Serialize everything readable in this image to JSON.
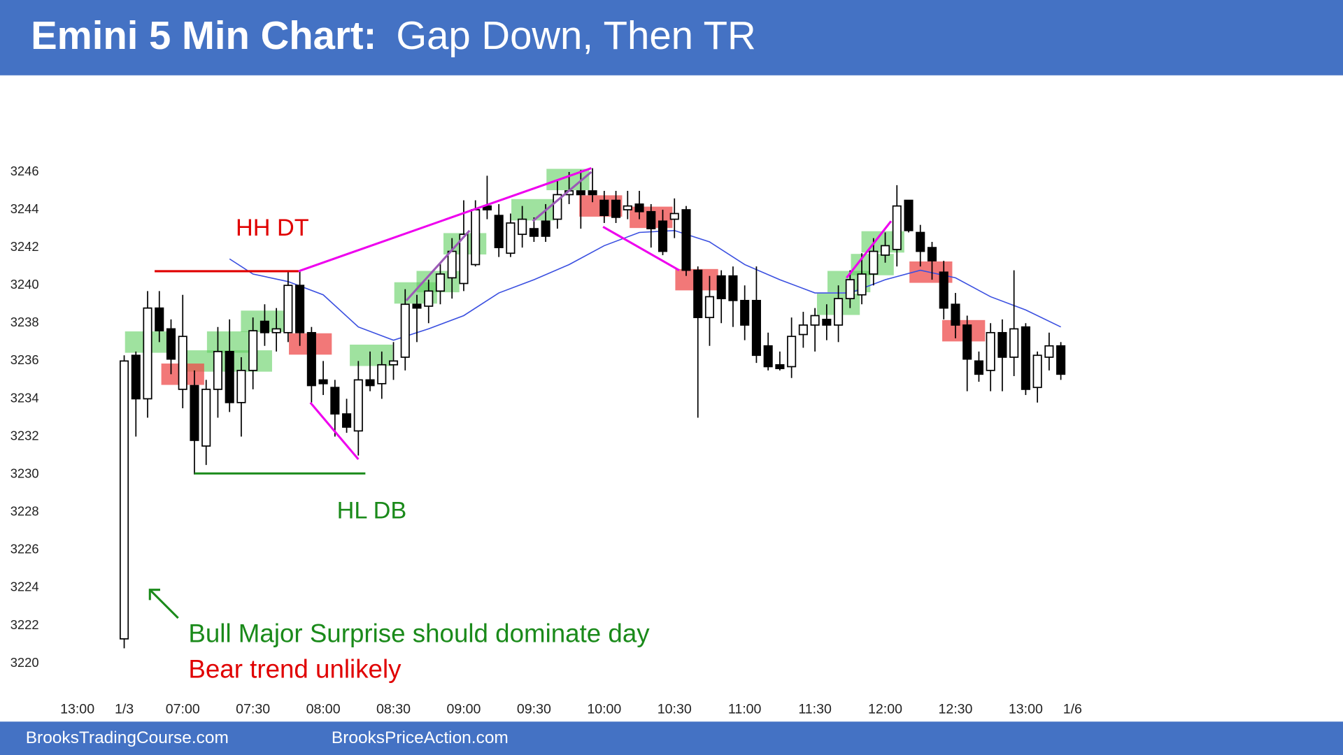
{
  "chart_data": {
    "type": "candlestick",
    "title": "Emini 5 Min Chart:",
    "subtitle": "Gap Down, Then TR",
    "x": [
      0,
      1,
      2,
      3,
      4,
      5,
      6,
      7,
      8,
      9,
      10,
      11,
      12,
      13,
      14,
      15,
      16,
      17,
      18,
      19,
      20,
      21,
      22,
      23,
      24,
      25,
      26,
      27,
      28,
      29,
      30,
      31,
      32,
      33,
      34,
      35,
      36,
      37,
      38,
      39,
      40,
      41,
      42,
      43,
      44,
      45,
      46,
      47,
      48,
      49,
      50,
      51,
      52,
      53,
      54,
      55,
      56,
      57,
      58,
      59,
      60,
      61,
      62,
      63,
      64,
      65,
      66,
      67,
      68,
      69,
      70,
      71,
      72,
      73,
      74,
      75,
      76,
      77,
      78,
      79,
      80
    ],
    "open": [
      3221.3,
      3236.3,
      3234,
      3238.8,
      3237.7,
      3234.5,
      3234.7,
      3231.5,
      3234.5,
      3236.5,
      3233.8,
      3235.5,
      3238.1,
      3237.5,
      3237.5,
      3240,
      3237.5,
      3235,
      3234.6,
      3233.2,
      3232.3,
      3235,
      3234.8,
      3235.8,
      3236.2,
      3239,
      3238.9,
      3239.7,
      3240.4,
      3240.1,
      3241.1,
      3244.2,
      3243.7,
      3241.7,
      3242.7,
      3243,
      3243.4,
      3243.5,
      3244.8,
      3245,
      3245,
      3244.5,
      3244.5,
      3244,
      3244.3,
      3243.9,
      3243.4,
      3243.5,
      3244,
      3240.8,
      3238.3,
      3240.5,
      3240.5,
      3239.2,
      3239.2,
      3236.8,
      3235.8,
      3235.7,
      3237.4,
      3237.9,
      3238.2,
      3237.9,
      3239.3,
      3239.5,
      3240.6,
      3241.6,
      3241.9,
      3244.5,
      3242.8,
      3242,
      3240.7,
      3239,
      3237.9,
      3236,
      3235.5,
      3237.5,
      3236.2,
      3237.8,
      3234.6,
      3236.2,
      3236.8
    ],
    "high": [
      3236.3,
      3236.5,
      3239.7,
      3239.7,
      3238.2,
      3239.5,
      3235.5,
      3235,
      3237.8,
      3238.2,
      3236.2,
      3238.3,
      3239,
      3238.8,
      3240.8,
      3240.8,
      3237.8,
      3236,
      3235,
      3234,
      3236,
      3236.5,
      3236.5,
      3237,
      3239.8,
      3239.5,
      3240.3,
      3241.2,
      3242.5,
      3244.5,
      3244.5,
      3245.8,
      3244.3,
      3243.8,
      3244.2,
      3243.6,
      3244.3,
      3245.6,
      3246,
      3246.1,
      3246.2,
      3245,
      3245,
      3245,
      3245,
      3244.3,
      3244,
      3244.6,
      3244.2,
      3241,
      3240.5,
      3240.8,
      3241,
      3240,
      3241,
      3237.5,
      3236.5,
      3238.3,
      3238.6,
      3238.8,
      3239,
      3240,
      3240.8,
      3241.7,
      3242.5,
      3242.8,
      3245.3,
      3244.5,
      3243.2,
      3242.3,
      3241.3,
      3239.6,
      3238.4,
      3236.5,
      3238,
      3238.2,
      3240.8,
      3238,
      3236.5,
      3237.5,
      3237
    ],
    "low": [
      3220.8,
      3232,
      3233,
      3237,
      3235.3,
      3233.5,
      3230,
      3230.5,
      3233,
      3233.3,
      3232,
      3234.5,
      3236.8,
      3236.5,
      3237,
      3236.8,
      3233.8,
      3234.2,
      3232,
      3232.2,
      3231,
      3234.4,
      3234,
      3235,
      3235.5,
      3237,
      3238,
      3239,
      3239.3,
      3239.7,
      3241,
      3243.5,
      3241.5,
      3241.5,
      3242,
      3242.3,
      3242.3,
      3243,
      3244.3,
      3243,
      3244.4,
      3243.3,
      3243.3,
      3243.5,
      3243.5,
      3242,
      3241.6,
      3242.5,
      3240.5,
      3233,
      3236.8,
      3238,
      3237.8,
      3237.1,
      3235.9,
      3235.5,
      3235.5,
      3235.1,
      3236.7,
      3236.5,
      3237.1,
      3237,
      3238.8,
      3239,
      3240,
      3241.2,
      3241,
      3242.8,
      3241,
      3240.3,
      3238.2,
      3237.2,
      3234.4,
      3234.9,
      3234.4,
      3234.4,
      3235.2,
      3234.2,
      3233.8,
      3235.5,
      3235
    ],
    "close": [
      3236,
      3234,
      3238.8,
      3237.6,
      3236.1,
      3237.3,
      3231.8,
      3234.5,
      3236.5,
      3233.8,
      3235.5,
      3237.6,
      3237.5,
      3237.7,
      3240,
      3237.5,
      3234.7,
      3234.8,
      3233.2,
      3232.5,
      3235,
      3234.7,
      3235.8,
      3236,
      3239,
      3238.8,
      3239.7,
      3240.6,
      3241.8,
      3242.7,
      3244,
      3244,
      3242,
      3243.3,
      3243.5,
      3242.6,
      3242.6,
      3244.8,
      3245,
      3244.8,
      3244.8,
      3243.7,
      3243.6,
      3244.2,
      3243.9,
      3243,
      3241.8,
      3243.8,
      3240.8,
      3238.3,
      3239.4,
      3239.3,
      3239.2,
      3237.9,
      3236.3,
      3235.7,
      3235.6,
      3237.3,
      3237.9,
      3238.4,
      3237.9,
      3239.3,
      3240.3,
      3240.6,
      3241.8,
      3242.1,
      3244.2,
      3242.9,
      3241.8,
      3241.3,
      3238.8,
      3237.9,
      3236.1,
      3235.3,
      3237.5,
      3236.2,
      3237.7,
      3234.5,
      3236.3,
      3236.8,
      3235.3
    ],
    "bull_color": "#ffffff",
    "bear_color": "#000000",
    "xlim": [
      -5,
      82
    ],
    "xticks": [
      {
        "value": -4,
        "label": "13:00"
      },
      {
        "value": 0,
        "label": "1/3"
      },
      {
        "value": 5,
        "label": "07:00"
      },
      {
        "value": 11,
        "label": "07:30"
      },
      {
        "value": 17,
        "label": "08:00"
      },
      {
        "value": 23,
        "label": "08:30"
      },
      {
        "value": 29,
        "label": "09:00"
      },
      {
        "value": 35,
        "label": "09:30"
      },
      {
        "value": 41,
        "label": "10:00"
      },
      {
        "value": 47,
        "label": "10:30"
      },
      {
        "value": 53,
        "label": "11:00"
      },
      {
        "value": 59,
        "label": "11:30"
      },
      {
        "value": 65,
        "label": "12:00"
      },
      {
        "value": 71,
        "label": "12:30"
      },
      {
        "value": 77,
        "label": "13:00"
      },
      {
        "value": 81,
        "label": "1/6"
      }
    ],
    "ylim": [
      3219,
      3247
    ],
    "yticks": [
      3220,
      3222,
      3224,
      3226,
      3228,
      3230,
      3232,
      3234,
      3236,
      3238,
      3240,
      3242,
      3244,
      3246
    ],
    "ema": {
      "color": "#3a4fe0",
      "x": [
        9,
        11,
        14,
        17,
        20,
        23,
        26,
        29,
        32,
        35,
        38,
        41,
        44,
        47,
        50,
        53,
        56,
        59,
        62,
        65,
        68,
        71,
        74,
        77,
        80
      ],
      "values": [
        3241.4,
        3240.6,
        3240.2,
        3239.5,
        3237.8,
        3237.1,
        3237.7,
        3238.4,
        3239.6,
        3240.3,
        3241.1,
        3242.1,
        3242.8,
        3242.9,
        3242.3,
        3241.1,
        3240.3,
        3239.6,
        3239.6,
        3240.3,
        3240.8,
        3240.4,
        3239.4,
        3238.7,
        3237.8
      ]
    },
    "signals": {
      "bull": {
        "color": "#5fcf5f",
        "x": [
          1.9,
          7.2,
          8.9,
          10.8,
          11.8,
          21.1,
          24.9,
          26.8,
          29.1,
          34.9,
          37.9,
          61,
          61.9,
          63.9,
          64.8
        ],
        "y": [
          3237,
          3236,
          3237,
          3236,
          3238.1,
          3236.3,
          3239.6,
          3240.2,
          3242.2,
          3244,
          3245.6,
          3239,
          3240.2,
          3241.1,
          3242.3
        ]
      },
      "bear": {
        "color": "#ee4b4b",
        "x": [
          5,
          15.9,
          40.7,
          45,
          48.9,
          68.9,
          71.7
        ],
        "y": [
          3235.3,
          3236.9,
          3244.2,
          3243.6,
          3240.3,
          3240.7,
          3237.6
        ]
      }
    },
    "lines": [
      {
        "color": "#e00000",
        "x": [
          2.6,
          14.9
        ],
        "y": [
          3240.75,
          3240.75
        ]
      },
      {
        "color": "#1a8a1a",
        "x": [
          6,
          20.6
        ],
        "y": [
          3230.05,
          3230.05
        ]
      },
      {
        "color": "#ee00ee",
        "x": [
          14.9,
          39.9
        ],
        "y": [
          3240.75,
          3246.2
        ]
      },
      {
        "color": "#ee00ee",
        "x": [
          15.9,
          20
        ],
        "y": [
          3233.8,
          3230.8
        ]
      },
      {
        "color": "#ee00ee",
        "x": [
          40.9,
          47.4
        ],
        "y": [
          3243.1,
          3240.8
        ]
      },
      {
        "color": "#9b59b6",
        "x": [
          24.1,
          29.5
        ],
        "y": [
          3239.2,
          3242.9
        ]
      },
      {
        "color": "#9b59b6",
        "x": [
          34.9,
          39.9
        ],
        "y": [
          3243.4,
          3246
        ]
      },
      {
        "color": "#ee00ee",
        "x": [
          61.7,
          65.5
        ],
        "y": [
          3240.4,
          3243.4
        ]
      }
    ],
    "annotations": [
      "HH DT",
      "HL DB",
      "Bull Major Surprise should dominate day",
      "Bear trend unlikely"
    ],
    "footer": [
      "BrooksTradingCourse.com",
      "BrooksPriceAction.com"
    ]
  }
}
